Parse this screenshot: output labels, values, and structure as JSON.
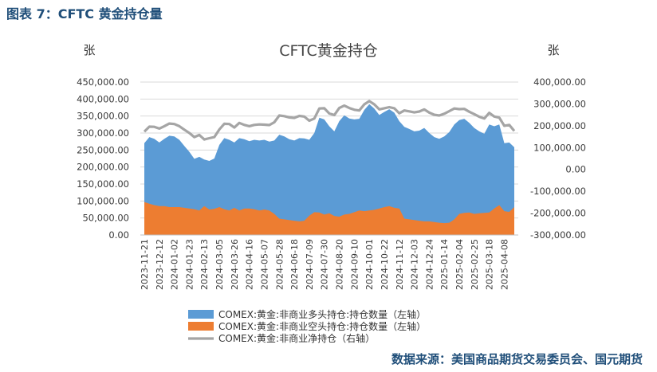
{
  "figure_caption": "图表 7：CFTC 黄金持仓量",
  "source_note": "数据来源：美国商品期货交易委员会、国元期货",
  "chart_data": {
    "type": "area",
    "title": "CFTC黄金持仓",
    "y_left_label": "张",
    "y_right_label": "张",
    "y_left_range": [
      0,
      450000
    ],
    "y_right_range": [
      -300000,
      400000
    ],
    "y_left_ticks": [
      "0.00",
      "50,000.00",
      "100,000.00",
      "150,000.00",
      "200,000.00",
      "250,000.00",
      "300,000.00",
      "350,000.00",
      "400,000.00",
      "450,000.00"
    ],
    "y_right_ticks": [
      "-300,000.00",
      "-200,000.00",
      "-100,000.00",
      "0.00",
      "100,000.00",
      "200,000.00",
      "300,000.00",
      "400,000.00"
    ],
    "grid": true,
    "legend_placement": "bottom",
    "x_dates": [
      "2023-11-21",
      "2023-11-28",
      "2023-12-05",
      "2023-12-12",
      "2023-12-19",
      "2023-12-26",
      "2024-01-02",
      "2024-01-09",
      "2024-01-16",
      "2024-01-23",
      "2024-01-30",
      "2024-02-06",
      "2024-02-13",
      "2024-02-20",
      "2024-02-27",
      "2024-03-05",
      "2024-03-12",
      "2024-03-19",
      "2024-03-26",
      "2024-04-02",
      "2024-04-09",
      "2024-04-16",
      "2024-04-23",
      "2024-04-30",
      "2024-05-07",
      "2024-05-14",
      "2024-05-21",
      "2024-05-28",
      "2024-06-04",
      "2024-06-11",
      "2024-06-18",
      "2024-06-25",
      "2024-07-02",
      "2024-07-09",
      "2024-07-16",
      "2024-07-23",
      "2024-07-30",
      "2024-08-06",
      "2024-08-13",
      "2024-08-20",
      "2024-08-27",
      "2024-09-03",
      "2024-09-10",
      "2024-09-17",
      "2024-09-24",
      "2024-10-01",
      "2024-10-08",
      "2024-10-15",
      "2024-10-22",
      "2024-10-29",
      "2024-11-05",
      "2024-11-12",
      "2024-11-19",
      "2024-11-26",
      "2024-12-03",
      "2024-12-10",
      "2024-12-17",
      "2024-12-24",
      "2024-12-31",
      "2025-01-07",
      "2025-01-14",
      "2025-01-21",
      "2025-01-28",
      "2025-02-04",
      "2025-02-11",
      "2025-02-18",
      "2025-02-25",
      "2025-03-04",
      "2025-03-11",
      "2025-03-18",
      "2025-03-25",
      "2025-04-01",
      "2025-04-08",
      "2025-04-15",
      "2025-04-22"
    ],
    "x_tick_labels": [
      "2023-11-21",
      "2023-12-12",
      "2024-01-02",
      "2024-01-23",
      "2024-02-13",
      "2024-03-05",
      "2024-03-26",
      "2024-04-16",
      "2024-05-07",
      "2024-05-28",
      "2024-06-18",
      "2024-07-09",
      "2024-07-30",
      "2024-08-20",
      "2024-09-10",
      "2024-10-01",
      "2024-10-22",
      "2024-11-12",
      "2024-12-03",
      "2024-12-24",
      "2025-01-14",
      "2025-02-04",
      "2025-02-25",
      "2025-03-18",
      "2025-04-08"
    ],
    "series": [
      {
        "name": "COMEX:黄金:非商业多头持仓:持仓数量（左轴）",
        "axis": "left",
        "color": "#5b9bd5",
        "values": [
          270000,
          288000,
          283000,
          272000,
          283000,
          292000,
          290000,
          280000,
          262000,
          245000,
          224000,
          230000,
          222000,
          218000,
          225000,
          265000,
          285000,
          280000,
          272000,
          285000,
          282000,
          276000,
          280000,
          278000,
          280000,
          275000,
          278000,
          295000,
          290000,
          282000,
          278000,
          285000,
          284000,
          280000,
          300000,
          345000,
          340000,
          320000,
          305000,
          335000,
          352000,
          343000,
          340000,
          342000,
          368000,
          385000,
          372000,
          353000,
          362000,
          370000,
          360000,
          335000,
          318000,
          312000,
          305000,
          307000,
          315000,
          300000,
          288000,
          283000,
          290000,
          303000,
          325000,
          338000,
          342000,
          330000,
          315000,
          305000,
          298000,
          325000,
          320000,
          325000,
          270000,
          272000,
          258000
        ]
      },
      {
        "name": "COMEX:黄金:非商业空头持仓:持仓数量（左轴）",
        "axis": "left",
        "color": "#ed7d31",
        "values": [
          97000,
          92000,
          88000,
          85000,
          85000,
          82000,
          82000,
          82000,
          80000,
          78000,
          76000,
          72000,
          85000,
          75000,
          77000,
          82000,
          76000,
          72000,
          80000,
          72000,
          78000,
          78000,
          76000,
          72000,
          75000,
          72000,
          62000,
          48000,
          46000,
          44000,
          42000,
          40000,
          42000,
          57000,
          67000,
          66000,
          60000,
          64000,
          56000,
          54000,
          60000,
          62000,
          67000,
          72000,
          70000,
          72000,
          74000,
          78000,
          82000,
          85000,
          80000,
          78000,
          48000,
          46000,
          44000,
          42000,
          40000,
          40000,
          38000,
          36000,
          35000,
          36000,
          46000,
          62000,
          65000,
          66000,
          62000,
          64000,
          65000,
          66000,
          78000,
          88000,
          70000,
          68000,
          82000
        ]
      },
      {
        "name": "COMEX:黄金:非商业净持仓（右轴）",
        "axis": "right",
        "color": "#a5a5a5",
        "values": [
          173000,
          196000,
          195000,
          187000,
          198000,
          210000,
          208000,
          198000,
          182000,
          167000,
          148000,
          158000,
          137000,
          143000,
          148000,
          183000,
          209000,
          208000,
          192000,
          213000,
          204000,
          198000,
          204000,
          206000,
          205000,
          203000,
          216000,
          247000,
          244000,
          238000,
          236000,
          245000,
          242000,
          223000,
          233000,
          279000,
          280000,
          256000,
          249000,
          281000,
          292000,
          281000,
          273000,
          270000,
          298000,
          313000,
          298000,
          275000,
          280000,
          285000,
          280000,
          257000,
          270000,
          266000,
          261000,
          265000,
          275000,
          260000,
          250000,
          247000,
          255000,
          267000,
          279000,
          276000,
          277000,
          264000,
          253000,
          241000,
          233000,
          259000,
          242000,
          237000,
          200000,
          204000,
          176000
        ]
      }
    ]
  }
}
